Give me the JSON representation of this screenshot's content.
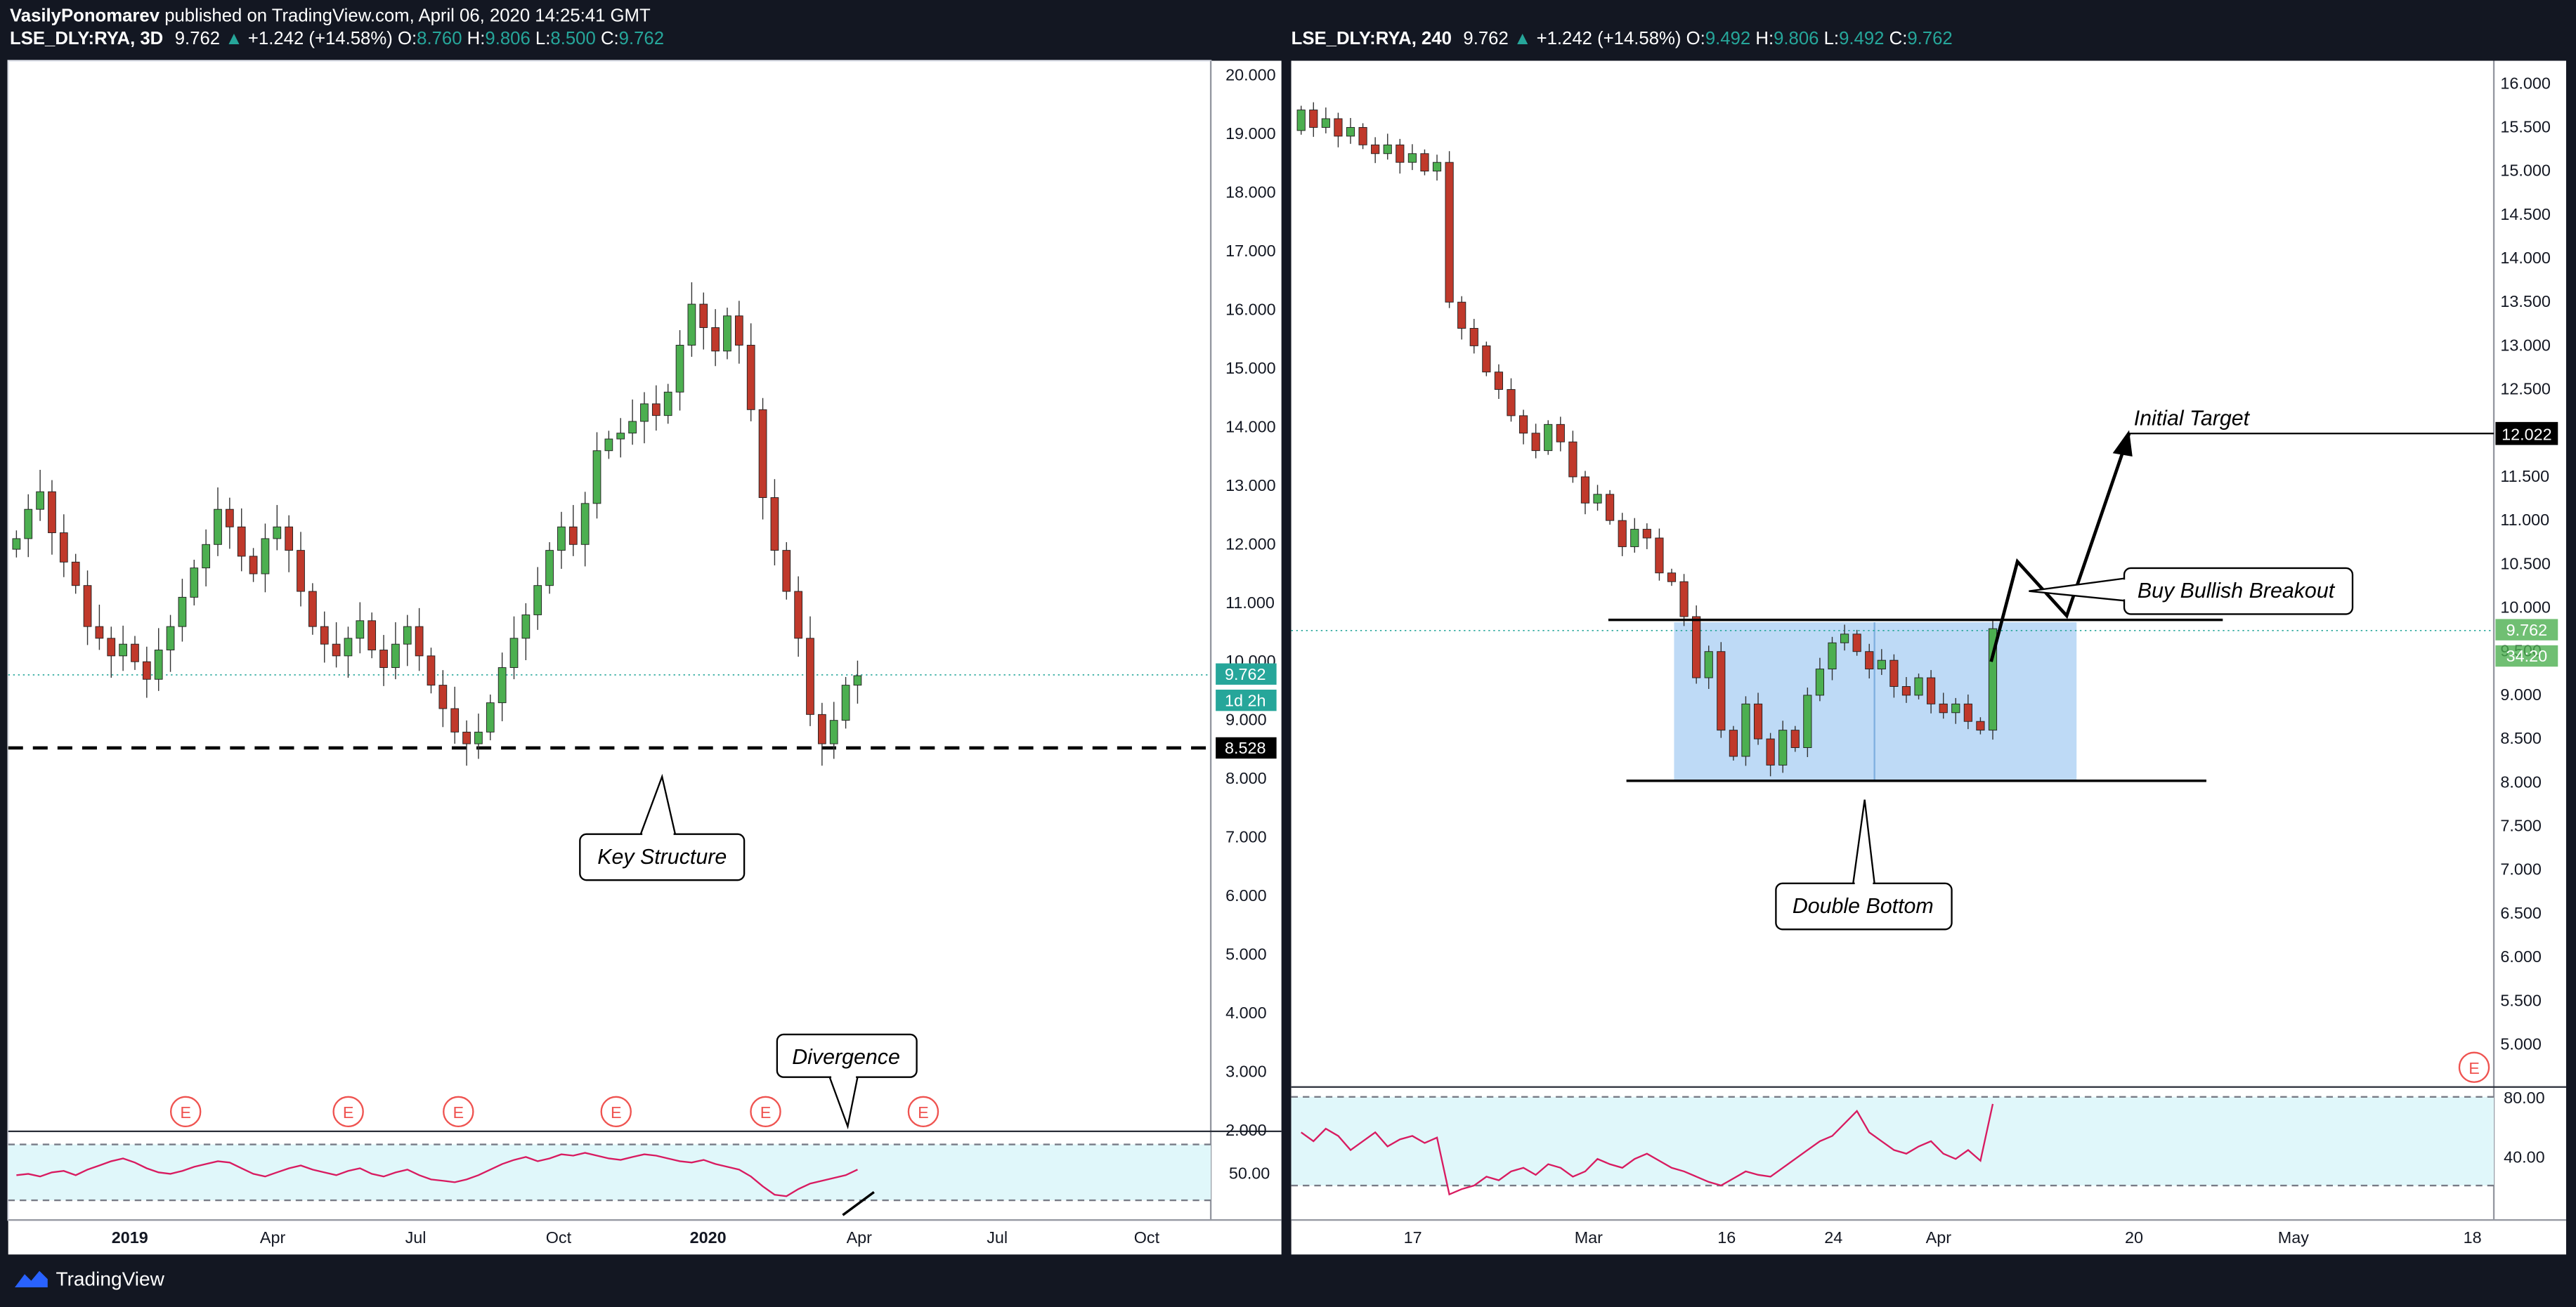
{
  "header": {
    "author": "VasilyPonomarev",
    "published": "published on TradingView.com, April 06, 2020 14:25:41 GMT"
  },
  "panels": {
    "left": {
      "symbol": "LSE_DLY:RYA, 3D",
      "last": "9.762",
      "change": "+1.242 (+14.58%)",
      "o": "8.760",
      "h": "9.806",
      "l": "8.500",
      "c": "9.762"
    },
    "right": {
      "symbol": "LSE_DLY:RYA, 240",
      "last": "9.762",
      "change": "+1.242 (+14.58%)",
      "o": "9.492",
      "h": "9.806",
      "l": "9.492",
      "c": "9.762"
    }
  },
  "labels": {
    "o": "O:",
    "h": "H:",
    "l": "L:",
    "c": "C:",
    "e": "E",
    "left_price_badge": "9.762",
    "left_countdown": "1d 2h",
    "left_support_badge": "8.528",
    "right_price_badge": "9.762",
    "right_countdown": "34:20",
    "right_target_badge": "12.022",
    "key_structure": "Key Structure",
    "divergence": "Divergence",
    "double_bottom": "Double Bottom",
    "buy_breakout": "Buy Bullish Breakout",
    "initial_target": "Initial Target"
  },
  "footer": {
    "brand": "TradingView"
  },
  "colors": {
    "up": "#26a69a",
    "down": "#ef5350",
    "candle_up": "#4caf50",
    "candle_down": "#c0392b",
    "rsi_line": "#d81b60",
    "rsi_band": "#e0f7fa",
    "box": "#b3d4f5"
  },
  "chart_data": [
    {
      "type": "candlestick",
      "title": "LSE_DLY:RYA, 3D",
      "x_ticks": [
        "2019",
        "Apr",
        "Jul",
        "Oct",
        "2020",
        "Apr",
        "Jul",
        "Oct"
      ],
      "y_ticks": [
        "20.000",
        "19.000",
        "18.000",
        "17.000",
        "16.000",
        "15.000",
        "14.000",
        "13.000",
        "12.000",
        "11.000",
        "10.000",
        "9.000",
        "8.000",
        "7.000",
        "6.000",
        "5.000",
        "4.000",
        "3.000",
        "2.000"
      ],
      "ylim": [
        1.5,
        20.3
      ],
      "horizontal_line": 8.528,
      "last_price": 9.762,
      "closes": [
        12.1,
        12.6,
        12.9,
        12.2,
        11.7,
        11.3,
        10.6,
        10.4,
        10.1,
        10.3,
        10.0,
        9.7,
        10.2,
        10.6,
        11.1,
        11.6,
        12.0,
        12.6,
        12.3,
        11.8,
        11.5,
        12.1,
        12.3,
        11.9,
        11.2,
        10.6,
        10.3,
        10.1,
        10.4,
        10.7,
        10.2,
        9.9,
        10.3,
        10.6,
        10.1,
        9.6,
        9.2,
        8.8,
        8.6,
        8.8,
        9.3,
        9.9,
        10.4,
        10.8,
        11.3,
        11.9,
        12.3,
        12.0,
        12.7,
        13.6,
        13.8,
        13.9,
        14.1,
        14.4,
        14.2,
        14.6,
        15.4,
        16.1,
        15.7,
        15.3,
        15.9,
        15.4,
        14.3,
        12.8,
        11.9,
        11.2,
        10.4,
        9.1,
        8.6,
        9.0,
        9.6,
        9.762
      ],
      "rsi": [
        48,
        49,
        47,
        50,
        51,
        48,
        52,
        55,
        58,
        60,
        57,
        53,
        50,
        49,
        51,
        54,
        56,
        58,
        57,
        53,
        49,
        47,
        50,
        53,
        55,
        52,
        50,
        48,
        51,
        53,
        49,
        47,
        50,
        52,
        48,
        45,
        44,
        43,
        45,
        48,
        52,
        56,
        59,
        61,
        58,
        60,
        63,
        62,
        64,
        62,
        60,
        59,
        61,
        63,
        62,
        60,
        58,
        57,
        59,
        56,
        54,
        52,
        47,
        40,
        34,
        33,
        38,
        42,
        44,
        46,
        48,
        52
      ]
    },
    {
      "type": "candlestick",
      "title": "LSE_DLY:RYA, 240",
      "x_ticks": [
        "17",
        "Mar",
        "16",
        "24",
        "Apr",
        "20",
        "May",
        "18"
      ],
      "y_ticks": [
        "16.000",
        "15.500",
        "15.000",
        "14.500",
        "14.000",
        "13.500",
        "13.000",
        "12.500",
        "12.000",
        "11.500",
        "11.000",
        "10.500",
        "10.000",
        "9.500",
        "9.000",
        "8.500",
        "8.000",
        "7.500",
        "7.000",
        "6.500",
        "6.000",
        "5.500",
        "5.000"
      ],
      "ylim": [
        4.5,
        16.25
      ],
      "levels": {
        "resistance": 9.85,
        "support": 8.0,
        "target": 12.022
      },
      "last_price": 9.762,
      "closes": [
        15.7,
        15.5,
        15.6,
        15.4,
        15.5,
        15.3,
        15.2,
        15.3,
        15.1,
        15.2,
        15.0,
        15.1,
        13.5,
        13.2,
        13.0,
        12.7,
        12.5,
        12.2,
        12.0,
        11.8,
        12.1,
        11.9,
        11.5,
        11.2,
        11.3,
        11.0,
        10.7,
        10.9,
        10.8,
        10.4,
        10.3,
        9.9,
        9.2,
        9.5,
        8.6,
        8.3,
        8.9,
        8.5,
        8.2,
        8.6,
        8.4,
        9.0,
        9.3,
        9.6,
        9.7,
        9.5,
        9.3,
        9.4,
        9.1,
        9.0,
        9.2,
        8.9,
        8.8,
        8.9,
        8.7,
        8.6,
        9.762
      ],
      "rsi": [
        60,
        55,
        62,
        58,
        50,
        55,
        60,
        52,
        56,
        58,
        54,
        57,
        25,
        28,
        30,
        35,
        33,
        38,
        40,
        36,
        42,
        40,
        35,
        38,
        45,
        42,
        40,
        45,
        48,
        44,
        40,
        38,
        35,
        32,
        30,
        34,
        38,
        36,
        35,
        40,
        45,
        50,
        55,
        58,
        65,
        72,
        60,
        55,
        50,
        48,
        52,
        55,
        48,
        45,
        50,
        44,
        76
      ]
    }
  ]
}
